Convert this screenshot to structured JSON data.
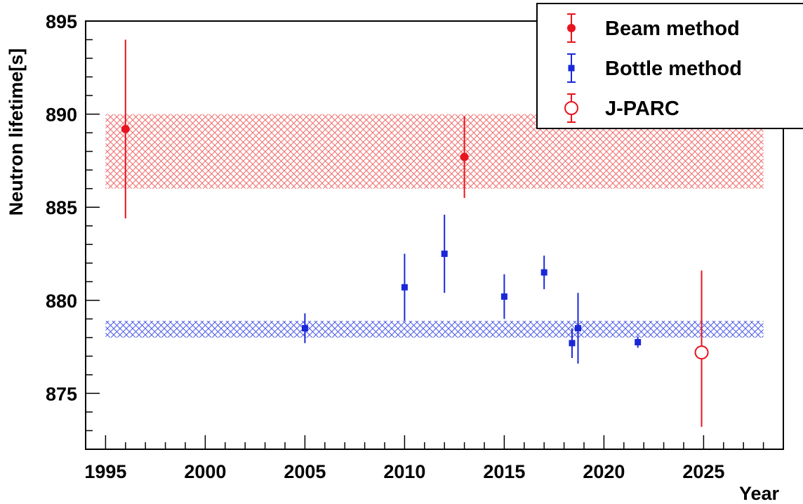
{
  "chart_data": {
    "type": "scatter",
    "title": "",
    "xlabel": "Year",
    "ylabel": "Neutron lifetime[s]",
    "xlim": [
      1994,
      2029
    ],
    "ylim": [
      872,
      895
    ],
    "x_ticks": [
      1995,
      2000,
      2005,
      2010,
      2015,
      2020,
      2025
    ],
    "y_ticks": [
      875,
      880,
      885,
      890,
      895
    ],
    "grid": false,
    "legend_position": "top-right",
    "colors": {
      "beam": "#e8141e",
      "bottle": "#1a28d8",
      "jparc": "#e8141e"
    },
    "bands": [
      {
        "series": "beam",
        "x": [
          1995,
          2028
        ],
        "y": [
          886.0,
          890.0
        ]
      },
      {
        "series": "bottle",
        "x": [
          1995,
          2028
        ],
        "y": [
          878.0,
          878.9
        ]
      }
    ],
    "series": [
      {
        "key": "beam",
        "name": "Beam method",
        "marker": "circle-filled",
        "points": [
          {
            "x": 1996.0,
            "y": 889.2,
            "err_low": 4.8,
            "err_high": 4.8
          },
          {
            "x": 2013.0,
            "y": 887.7,
            "err_low": 2.2,
            "err_high": 2.2
          }
        ]
      },
      {
        "key": "bottle",
        "name": "Bottle method",
        "marker": "square-filled",
        "points": [
          {
            "x": 2005.0,
            "y": 878.5,
            "err_low": 0.8,
            "err_high": 0.8
          },
          {
            "x": 2010.0,
            "y": 880.7,
            "err_low": 1.8,
            "err_high": 1.8
          },
          {
            "x": 2012.0,
            "y": 882.5,
            "err_low": 2.1,
            "err_high": 2.1
          },
          {
            "x": 2015.0,
            "y": 880.2,
            "err_low": 1.2,
            "err_high": 1.2
          },
          {
            "x": 2017.0,
            "y": 881.5,
            "err_low": 0.9,
            "err_high": 0.9
          },
          {
            "x": 2018.4,
            "y": 877.7,
            "err_low": 0.8,
            "err_high": 0.8
          },
          {
            "x": 2018.7,
            "y": 878.5,
            "err_low": 1.9,
            "err_high": 1.9
          },
          {
            "x": 2021.7,
            "y": 877.75,
            "err_low": 0.3,
            "err_high": 0.3
          }
        ]
      },
      {
        "key": "jparc",
        "name": "J-PARC",
        "marker": "circle-open",
        "points": [
          {
            "x": 2024.9,
            "y": 877.2,
            "err_low": 4.0,
            "err_high": 4.4
          }
        ]
      }
    ]
  }
}
